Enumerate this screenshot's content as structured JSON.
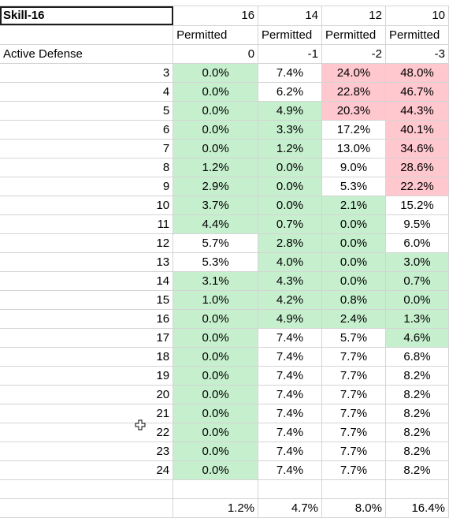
{
  "header": {
    "name_cell": "Skill-16",
    "skills": [
      "16",
      "14",
      "12",
      "10"
    ],
    "permitted": [
      "Permitted",
      "Permitted",
      "Permitted",
      "Permitted"
    ],
    "defense_label": "Active Defense",
    "defense_values": [
      "0",
      "-1",
      "-2",
      "-3"
    ]
  },
  "rows": [
    {
      "label": "3",
      "cells": [
        "0.0%",
        "7.4%",
        "24.0%",
        "48.0%"
      ],
      "fill": [
        "green",
        "white",
        "red",
        "red"
      ]
    },
    {
      "label": "4",
      "cells": [
        "0.0%",
        "6.2%",
        "22.8%",
        "46.7%"
      ],
      "fill": [
        "green",
        "white",
        "red",
        "red"
      ]
    },
    {
      "label": "5",
      "cells": [
        "0.0%",
        "4.9%",
        "20.3%",
        "44.3%"
      ],
      "fill": [
        "green",
        "green",
        "red",
        "red"
      ]
    },
    {
      "label": "6",
      "cells": [
        "0.0%",
        "3.3%",
        "17.2%",
        "40.1%"
      ],
      "fill": [
        "green",
        "green",
        "white",
        "red"
      ]
    },
    {
      "label": "7",
      "cells": [
        "0.0%",
        "1.2%",
        "13.0%",
        "34.6%"
      ],
      "fill": [
        "green",
        "green",
        "white",
        "red"
      ]
    },
    {
      "label": "8",
      "cells": [
        "1.2%",
        "0.0%",
        "9.0%",
        "28.6%"
      ],
      "fill": [
        "green",
        "green",
        "white",
        "red"
      ]
    },
    {
      "label": "9",
      "cells": [
        "2.9%",
        "0.0%",
        "5.3%",
        "22.2%"
      ],
      "fill": [
        "green",
        "green",
        "white",
        "red"
      ]
    },
    {
      "label": "10",
      "cells": [
        "3.7%",
        "0.0%",
        "2.1%",
        "15.2%"
      ],
      "fill": [
        "green",
        "green",
        "green",
        "white"
      ]
    },
    {
      "label": "11",
      "cells": [
        "4.4%",
        "0.7%",
        "0.0%",
        "9.5%"
      ],
      "fill": [
        "green",
        "green",
        "green",
        "white"
      ]
    },
    {
      "label": "12",
      "cells": [
        "5.7%",
        "2.8%",
        "0.0%",
        "6.0%"
      ],
      "fill": [
        "white",
        "green",
        "green",
        "white"
      ]
    },
    {
      "label": "13",
      "cells": [
        "5.3%",
        "4.0%",
        "0.0%",
        "3.0%"
      ],
      "fill": [
        "white",
        "green",
        "green",
        "green"
      ]
    },
    {
      "label": "14",
      "cells": [
        "3.1%",
        "4.3%",
        "0.0%",
        "0.7%"
      ],
      "fill": [
        "green",
        "green",
        "green",
        "green"
      ]
    },
    {
      "label": "15",
      "cells": [
        "1.0%",
        "4.2%",
        "0.8%",
        "0.0%"
      ],
      "fill": [
        "green",
        "green",
        "green",
        "green"
      ]
    },
    {
      "label": "16",
      "cells": [
        "0.0%",
        "4.9%",
        "2.4%",
        "1.3%"
      ],
      "fill": [
        "green",
        "green",
        "green",
        "green"
      ]
    },
    {
      "label": "17",
      "cells": [
        "0.0%",
        "7.4%",
        "5.7%",
        "4.6%"
      ],
      "fill": [
        "green",
        "white",
        "white",
        "green"
      ]
    },
    {
      "label": "18",
      "cells": [
        "0.0%",
        "7.4%",
        "7.7%",
        "6.8%"
      ],
      "fill": [
        "green",
        "white",
        "white",
        "white"
      ]
    },
    {
      "label": "19",
      "cells": [
        "0.0%",
        "7.4%",
        "7.7%",
        "8.2%"
      ],
      "fill": [
        "green",
        "white",
        "white",
        "white"
      ]
    },
    {
      "label": "20",
      "cells": [
        "0.0%",
        "7.4%",
        "7.7%",
        "8.2%"
      ],
      "fill": [
        "green",
        "white",
        "white",
        "white"
      ]
    },
    {
      "label": "21",
      "cells": [
        "0.0%",
        "7.4%",
        "7.7%",
        "8.2%"
      ],
      "fill": [
        "green",
        "white",
        "white",
        "white"
      ]
    },
    {
      "label": "22",
      "cells": [
        "0.0%",
        "7.4%",
        "7.7%",
        "8.2%"
      ],
      "fill": [
        "green",
        "white",
        "white",
        "white"
      ]
    },
    {
      "label": "23",
      "cells": [
        "0.0%",
        "7.4%",
        "7.7%",
        "8.2%"
      ],
      "fill": [
        "green",
        "white",
        "white",
        "white"
      ]
    },
    {
      "label": "24",
      "cells": [
        "0.0%",
        "7.4%",
        "7.7%",
        "8.2%"
      ],
      "fill": [
        "green",
        "white",
        "white",
        "white"
      ]
    }
  ],
  "totals": [
    "1.2%",
    "4.7%",
    "8.0%",
    "16.4%"
  ],
  "colors": {
    "green_fill": "#c6efce",
    "green_text": "#006100",
    "red_fill": "#ffc7ce",
    "red_text": "#9c0006",
    "gridline": "#d4d4d4"
  },
  "cursor_icon": "cell-select-cross-icon"
}
